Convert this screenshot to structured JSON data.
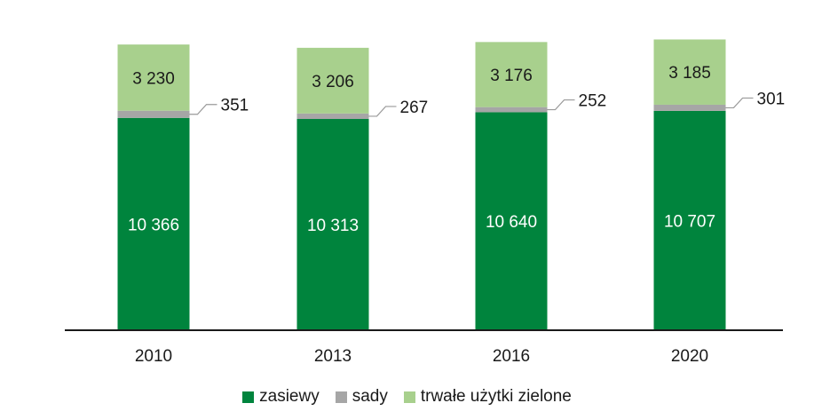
{
  "chart_data": {
    "type": "bar",
    "stacked": true,
    "categories": [
      "2010",
      "2013",
      "2016",
      "2020"
    ],
    "series": [
      {
        "name": "zasiewy",
        "color": "#00843D",
        "values": [
          10366,
          10313,
          10640,
          10707
        ],
        "labels": [
          "10 366",
          "10 313",
          "10 640",
          "10 707"
        ]
      },
      {
        "name": "sady",
        "color": "#A6A6A6",
        "values": [
          351,
          267,
          252,
          301
        ],
        "labels": [
          "351",
          "267",
          "252",
          "301"
        ]
      },
      {
        "name": "trwałe użytki zielone",
        "color": "#A8D08D",
        "values": [
          3230,
          3206,
          3176,
          3185
        ],
        "labels": [
          "3 230",
          "3 206",
          "3 176",
          "3 185"
        ]
      }
    ],
    "title": "",
    "xlabel": "",
    "ylabel": "",
    "ylim": [
      0,
      14300
    ],
    "grid": false,
    "legend": "bottom"
  }
}
